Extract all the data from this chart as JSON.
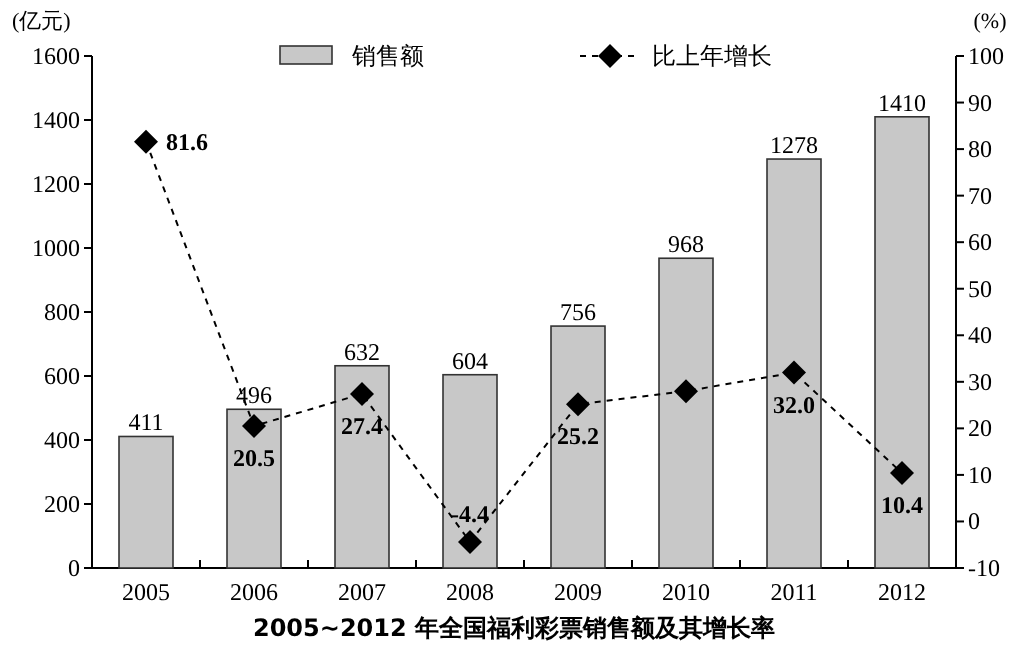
{
  "chart_data": {
    "type": "bar",
    "title": "2005~2012 年全国福利彩票销售额及其增长率",
    "ylabel": "(亿元)",
    "y2label": "(%)",
    "categories": [
      "2005",
      "2006",
      "2007",
      "2008",
      "2009",
      "2010",
      "2011",
      "2012"
    ],
    "series": [
      {
        "name": "销售额",
        "color": "#c8c8c8",
        "values": [
          411,
          496,
          632,
          604,
          756,
          968,
          1278,
          1410
        ],
        "value_labels": [
          "411",
          "496",
          "632",
          "604",
          "756",
          "968",
          "1278",
          "1410"
        ]
      },
      {
        "name": "比上年增长",
        "type": "line",
        "axis": "y2",
        "color": "#000000",
        "marker": "diamond",
        "line_style": "dashed",
        "values": [
          81.6,
          20.5,
          27.4,
          -4.4,
          25.2,
          28.0,
          32.0,
          10.4
        ],
        "value_labels": [
          "81.6",
          "20.5",
          "27.4",
          "-4.4",
          "25.2",
          null,
          "32.0",
          "10.4"
        ]
      }
    ],
    "ylim": [
      0,
      1600
    ],
    "yticks": [
      0,
      200,
      400,
      600,
      800,
      1000,
      1200,
      1400,
      1600
    ],
    "y2lim": [
      -10,
      100
    ],
    "y2ticks": [
      -10,
      0,
      10,
      20,
      30,
      40,
      50,
      60,
      70,
      80,
      90,
      100
    ],
    "legend": "top",
    "grid": false
  }
}
